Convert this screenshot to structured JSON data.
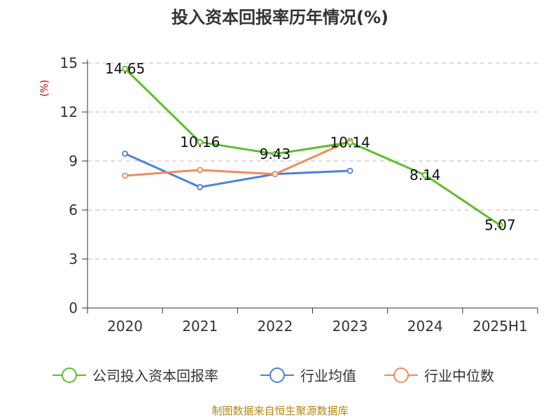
{
  "chart_data": {
    "type": "line",
    "title": "投入资本回报率历年情况(%)",
    "ylabel": "(%)",
    "xlabel": "",
    "categories": [
      "2020",
      "2021",
      "2022",
      "2023",
      "2024",
      "2025H1"
    ],
    "ylim": [
      0,
      15
    ],
    "yticks": [
      0,
      3,
      6,
      9,
      12,
      15
    ],
    "grid": true,
    "legend_position": "bottom",
    "series": [
      {
        "name": "公司投入资本回报率",
        "color": "#5dbe29",
        "values": [
          14.65,
          10.16,
          9.43,
          10.14,
          8.14,
          5.07
        ],
        "labels": [
          "14.65",
          "10.16",
          "9.43",
          "10.14",
          "8.14",
          "5.07"
        ]
      },
      {
        "name": "行业均值",
        "color": "#4f7fdb",
        "values": [
          9.45,
          7.4,
          8.2,
          8.4,
          null,
          null
        ]
      },
      {
        "name": "行业中位数",
        "color": "#f28b5b",
        "values": [
          8.1,
          8.45,
          8.2,
          10.25,
          null,
          null
        ]
      }
    ],
    "source": "制图数据来自恒生聚源数据库"
  }
}
